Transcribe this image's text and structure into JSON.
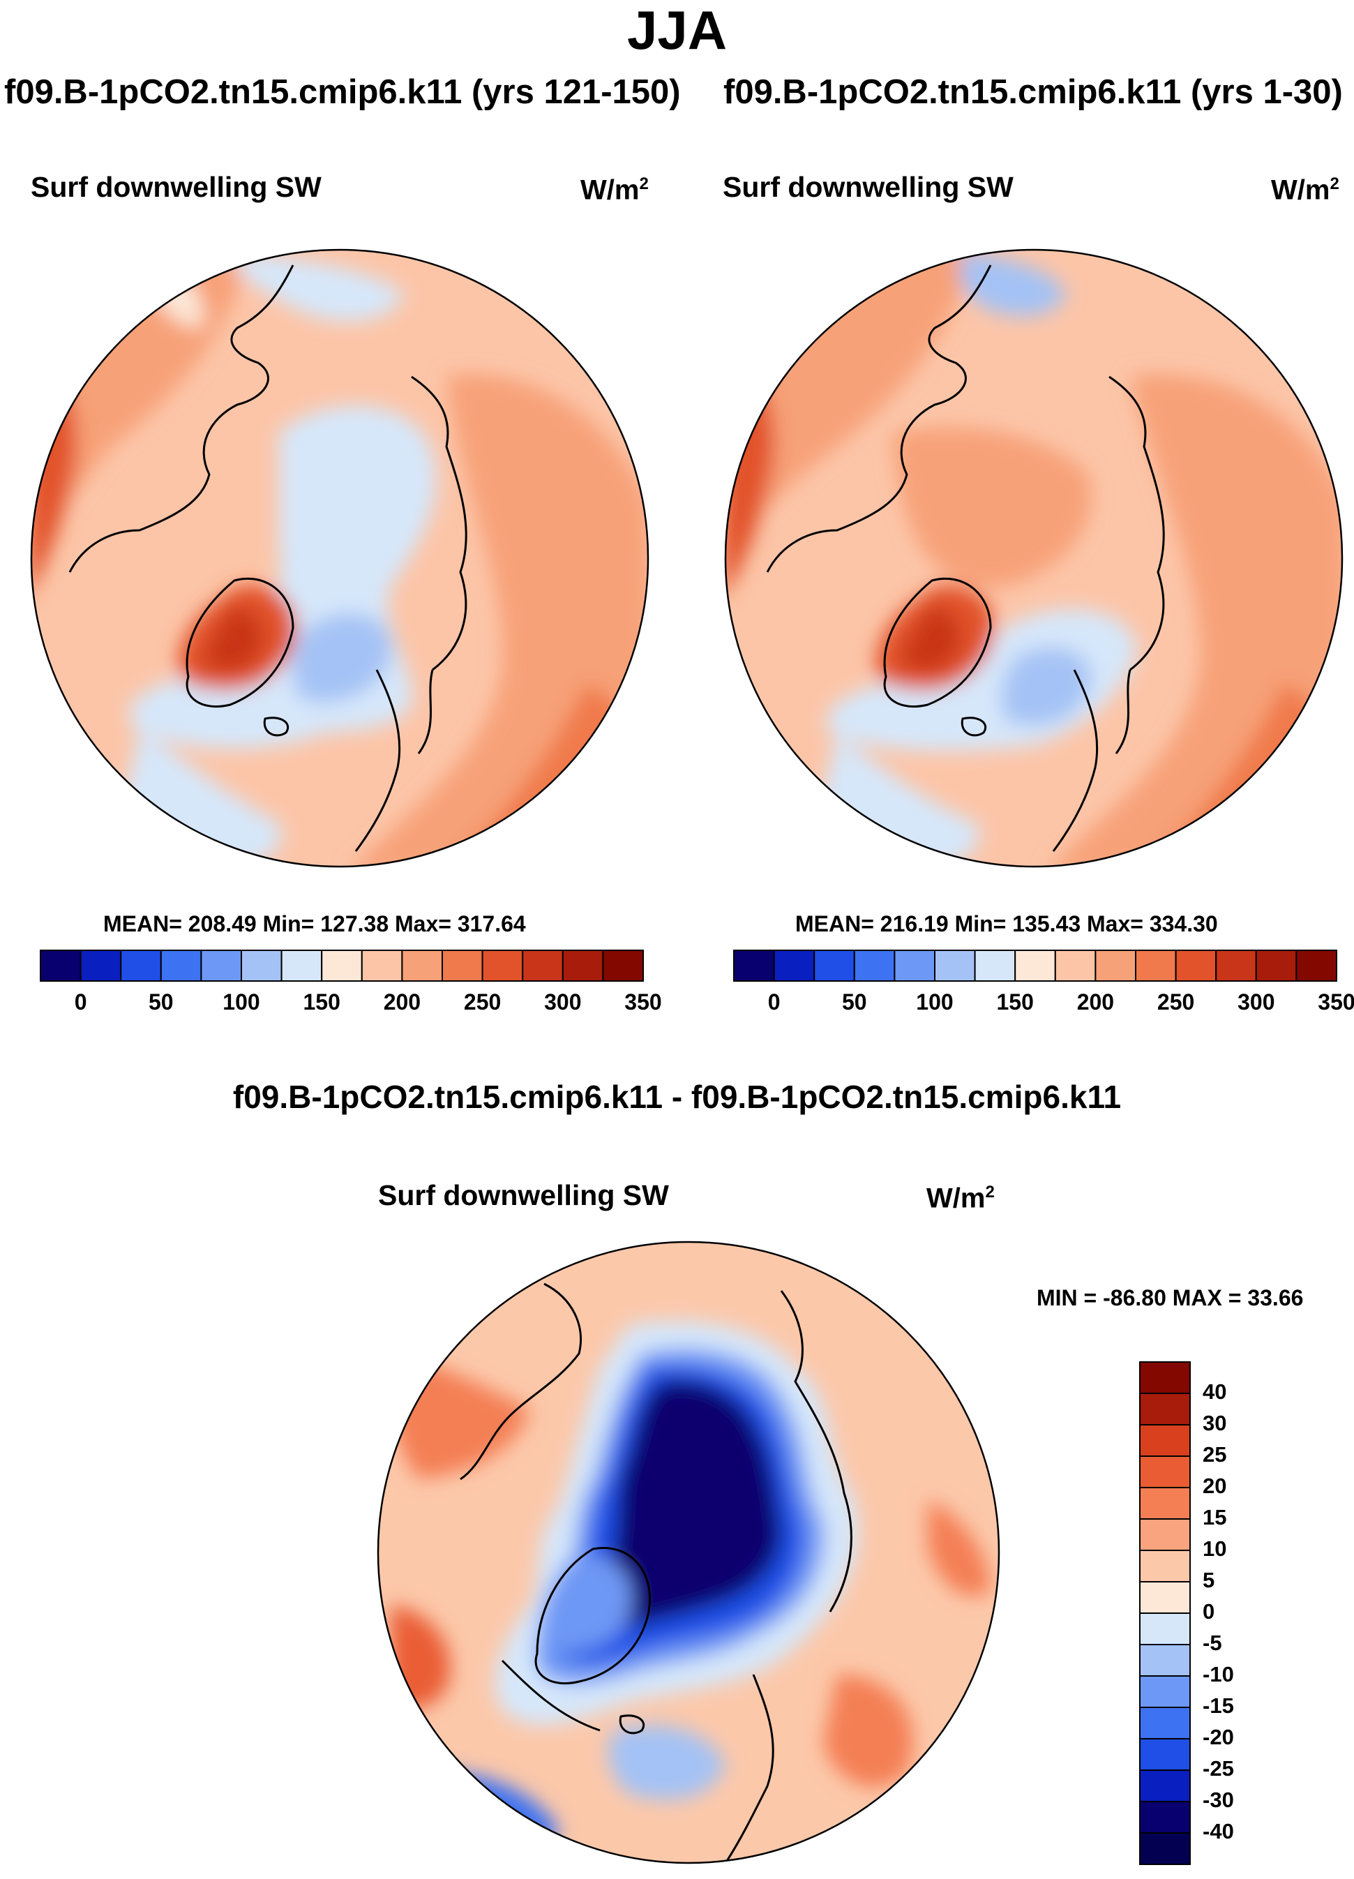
{
  "figure": {
    "season": "JJA",
    "panel_left": {
      "case": "f09.B-1pCO2.tn15.cmip6.k11 (yrs 121-150)",
      "variable": "Surf downwelling SW",
      "units_base": "W/m",
      "units_exp": "2",
      "stats": "MEAN= 208.49  Min= 127.38  Max= 317.64"
    },
    "panel_right": {
      "case": "f09.B-1pCO2.tn15.cmip6.k11 (yrs 1-30)",
      "variable": "Surf downwelling SW",
      "units_base": "W/m",
      "units_exp": "2",
      "stats": "MEAN= 216.19  Min= 135.43  Max= 334.30"
    },
    "panel_diff": {
      "title": "f09.B-1pCO2.tn15.cmip6.k11 - f09.B-1pCO2.tn15.cmip6.k11",
      "variable": "Surf downwelling SW",
      "units_base": "W/m",
      "units_exp": "2",
      "stats": "MIN = -86.80 MAX =  33.66"
    }
  },
  "chart_data": [
    {
      "type": "heatmap",
      "projection": "north-polar-stereographic",
      "title": "f09.B-1pCO2.tn15.cmip6.k11 (yrs 121-150)",
      "variable": "Surf downwelling SW",
      "units": "W/m^2",
      "mean": 208.49,
      "min": 127.38,
      "max": 317.64,
      "colorbar_levels": [
        0,
        25,
        50,
        75,
        100,
        125,
        150,
        175,
        200,
        225,
        250,
        275,
        300,
        325,
        350
      ],
      "colorbar_tick_labels": [
        "0",
        "50",
        "100",
        "150",
        "200",
        "250",
        "300",
        "350"
      ],
      "colorbar_colors": [
        "#08006e",
        "#0a1fc0",
        "#1f4fe6",
        "#3d72f2",
        "#6e98f5",
        "#a4c2f5",
        "#d6e7fa",
        "#fde8d8",
        "#fcc5a8",
        "#f7a178",
        "#f07a4c",
        "#e2532c",
        "#c93518",
        "#a81c0c",
        "#830800"
      ]
    },
    {
      "type": "heatmap",
      "projection": "north-polar-stereographic",
      "title": "f09.B-1pCO2.tn15.cmip6.k11 (yrs 1-30)",
      "variable": "Surf downwelling SW",
      "units": "W/m^2",
      "mean": 216.19,
      "min": 135.43,
      "max": 334.3,
      "colorbar_levels": [
        0,
        25,
        50,
        75,
        100,
        125,
        150,
        175,
        200,
        225,
        250,
        275,
        300,
        325,
        350
      ],
      "colorbar_tick_labels": [
        "0",
        "50",
        "100",
        "150",
        "200",
        "250",
        "300",
        "350"
      ],
      "colorbar_colors": [
        "#08006e",
        "#0a1fc0",
        "#1f4fe6",
        "#3d72f2",
        "#6e98f5",
        "#a4c2f5",
        "#d6e7fa",
        "#fde8d8",
        "#fcc5a8",
        "#f7a178",
        "#f07a4c",
        "#e2532c",
        "#c93518",
        "#a81c0c",
        "#830800"
      ]
    },
    {
      "type": "heatmap",
      "projection": "north-polar-stereographic",
      "title": "f09.B-1pCO2.tn15.cmip6.k11 - f09.B-1pCO2.tn15.cmip6.k11",
      "variable": "Surf downwelling SW",
      "units": "W/m^2",
      "min": -86.8,
      "max": 33.66,
      "colorbar_levels": [
        -40,
        -30,
        -25,
        -20,
        -15,
        -10,
        -5,
        0,
        5,
        10,
        15,
        20,
        25,
        30,
        40
      ],
      "colorbar_tick_labels_top_to_bottom": [
        "40",
        "30",
        "25",
        "20",
        "15",
        "10",
        "5",
        "0",
        "-5",
        "-10",
        "-15",
        "-20",
        "-25",
        "-30",
        "-40"
      ],
      "colorbar_colors_top_to_bottom": [
        "#830800",
        "#a81c0c",
        "#d8401e",
        "#ea5d34",
        "#f47f55",
        "#f9a47e",
        "#fcc8aa",
        "#fde8d8",
        "#d6e7fa",
        "#a4c2f5",
        "#6e98f5",
        "#3d72f2",
        "#1f4fe6",
        "#0a1fc0",
        "#08006e",
        "#030052"
      ]
    }
  ]
}
